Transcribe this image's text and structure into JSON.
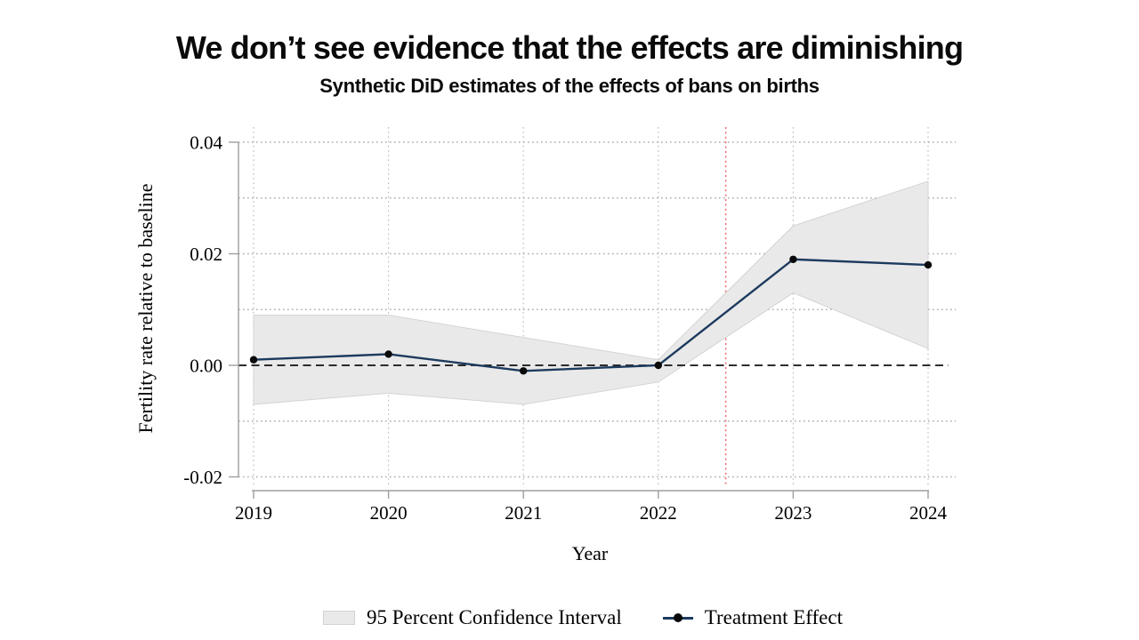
{
  "slide": {
    "title": "We don’t see evidence that the effects are diminishing",
    "subtitle": "Synthetic DiD estimates of the effects of bans on births"
  },
  "chart_data": {
    "type": "line",
    "title": "We don’t see evidence that the effects are diminishing",
    "subtitle": "Synthetic DiD estimates of the effects of bans on births",
    "xlabel": "Year",
    "ylabel": "Fertility rate relative to baseline",
    "x": [
      2019,
      2020,
      2021,
      2022,
      2023,
      2024
    ],
    "series": [
      {
        "name": "Treatment Effect",
        "values": [
          0.001,
          0.002,
          -0.001,
          0,
          0.019,
          0.018
        ]
      }
    ],
    "ci": {
      "name": "95 Percent Confidence Interval",
      "upper": [
        0.009,
        0.009,
        0.005,
        0.001,
        0.025,
        0.033
      ],
      "lower": [
        -0.007,
        -0.005,
        -0.007,
        -0.003,
        0.013,
        0.003
      ]
    },
    "ylim": [
      -0.02,
      0.04
    ],
    "yticks": [
      {
        "value": 0.04,
        "label": "0.04"
      },
      {
        "value": 0.02,
        "label": "0.02"
      },
      {
        "value": 0,
        "label": "0.00"
      },
      {
        "value": -0.02,
        "label": "-0.02"
      }
    ],
    "yticks_minor": [
      0.03,
      0.01,
      -0.01
    ],
    "xtick_labels": [
      "2019",
      "2020",
      "2021",
      "2022",
      "2023",
      "2024"
    ],
    "reference_lines": {
      "zero_line_y": 0,
      "treatment_start_x": 2022.5
    },
    "grid": "dotted",
    "legend_position": "bottom",
    "legend": [
      {
        "label": "95 Percent Confidence Interval",
        "swatch": "band"
      },
      {
        "label": "Treatment Effect",
        "swatch": "line-marker"
      }
    ],
    "colors": {
      "line": "#1c3a5e",
      "marker": "#0a0a0a",
      "band_fill": "#e9e9e9",
      "band_border": "#d4d4d4",
      "grid": "#ababab",
      "grid_vertical": "#bcbcbc",
      "red_line": "#f07070",
      "axis": "#9e9e9e",
      "zero_line": "#111111",
      "text": "#000000"
    }
  }
}
